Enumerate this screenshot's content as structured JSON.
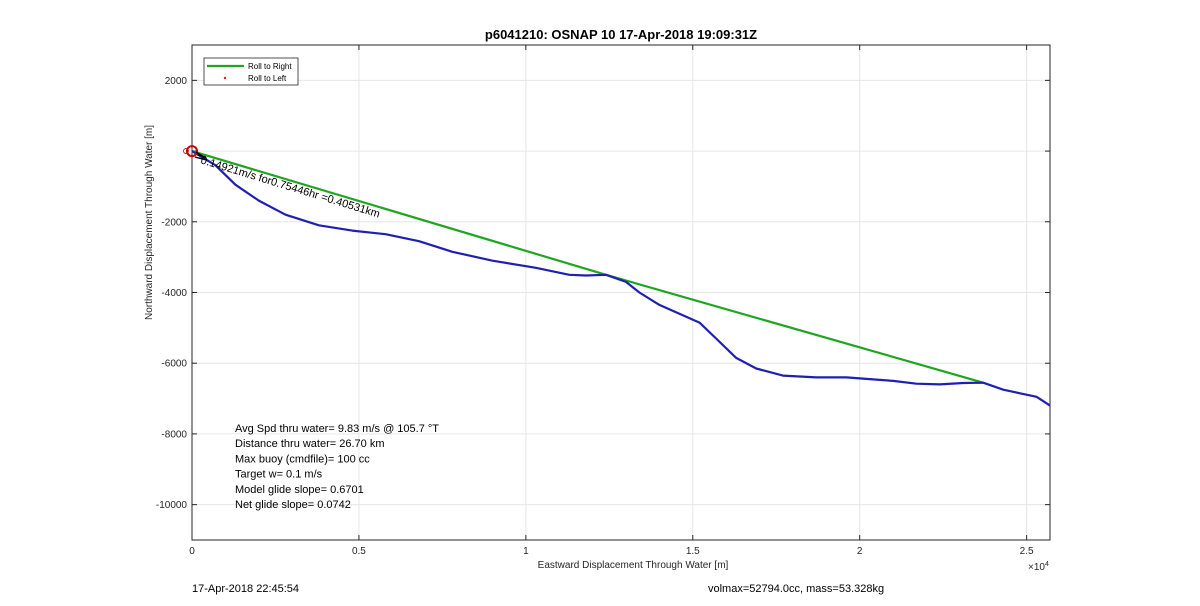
{
  "footer": {
    "left": "17-Apr-2018 22:45:54",
    "right": "volmax=52794.0cc, mass=53.328kg"
  },
  "chart_data": {
    "type": "line",
    "title": "p6041210: OSNAP 10 17-Apr-2018 19:09:31Z",
    "xlabel": "Eastward Displacement Through Water [m]",
    "ylabel": "Northward Displacement Through Water [m]",
    "x_exponent_label": "×10",
    "x_exponent": "4",
    "xlim": [
      0,
      25700
    ],
    "ylim": [
      -11000,
      3000
    ],
    "x_ticks": [
      0,
      5000,
      10000,
      15000,
      20000,
      25000
    ],
    "x_tick_labels": [
      "0",
      "0.5",
      "1",
      "1.5",
      "2",
      "2.5"
    ],
    "y_ticks": [
      -10000,
      -8000,
      -6000,
      -4000,
      -2000,
      0,
      2000
    ],
    "y_tick_labels": [
      "-10000",
      "-8000",
      "-6000",
      "-4000",
      "-2000",
      "",
      "2000"
    ],
    "grid": true,
    "legend": {
      "placement": "top-left",
      "entries": [
        {
          "label": "Roll to Right",
          "color": "#1fa51f",
          "style": "line"
        },
        {
          "label": "Roll to Left",
          "color": "#e02020",
          "style": "dot"
        }
      ]
    },
    "series": [
      {
        "name": "Roll to Right",
        "color": "#1fa51f",
        "points": [
          [
            0,
            0
          ],
          [
            12400,
            -3500
          ],
          [
            23700,
            -6550
          ]
        ]
      },
      {
        "color": "#1f1fb4",
        "points": [
          [
            0,
            0
          ],
          [
            700,
            -400
          ],
          [
            1300,
            -950
          ],
          [
            2000,
            -1400
          ],
          [
            2800,
            -1800
          ],
          [
            3800,
            -2100
          ],
          [
            4800,
            -2250
          ],
          [
            5800,
            -2350
          ],
          [
            6800,
            -2550
          ],
          [
            7800,
            -2850
          ],
          [
            9000,
            -3100
          ],
          [
            10300,
            -3300
          ],
          [
            11300,
            -3500
          ],
          [
            11800,
            -3520
          ],
          [
            12400,
            -3500
          ],
          [
            13000,
            -3700
          ],
          [
            13400,
            -4000
          ],
          [
            14000,
            -4350
          ],
          [
            14600,
            -4600
          ],
          [
            15200,
            -4850
          ],
          [
            15700,
            -5300
          ],
          [
            16300,
            -5850
          ],
          [
            16900,
            -6150
          ],
          [
            17700,
            -6350
          ],
          [
            18700,
            -6400
          ],
          [
            19600,
            -6400
          ],
          [
            20300,
            -6450
          ],
          [
            21000,
            -6500
          ],
          [
            21700,
            -6580
          ],
          [
            22400,
            -6600
          ],
          [
            23100,
            -6560
          ],
          [
            23700,
            -6550
          ],
          [
            24300,
            -6750
          ],
          [
            24800,
            -6850
          ],
          [
            25300,
            -6950
          ],
          [
            25700,
            -7200
          ]
        ]
      }
    ],
    "start_marker": [
      0,
      0
    ],
    "line_label": "0.14921m/s for0.75446hr =0.40531km",
    "annotations": [
      "Avg Spd thru water=  9.83 m/s @ 105.7 °T",
      "Distance thru water= 26.70 km",
      "Max buoy (cmdfile)= 100 cc",
      "Target w= 0.1 m/s",
      "Model glide slope= 0.6701",
      "Net glide slope= 0.0742"
    ]
  }
}
